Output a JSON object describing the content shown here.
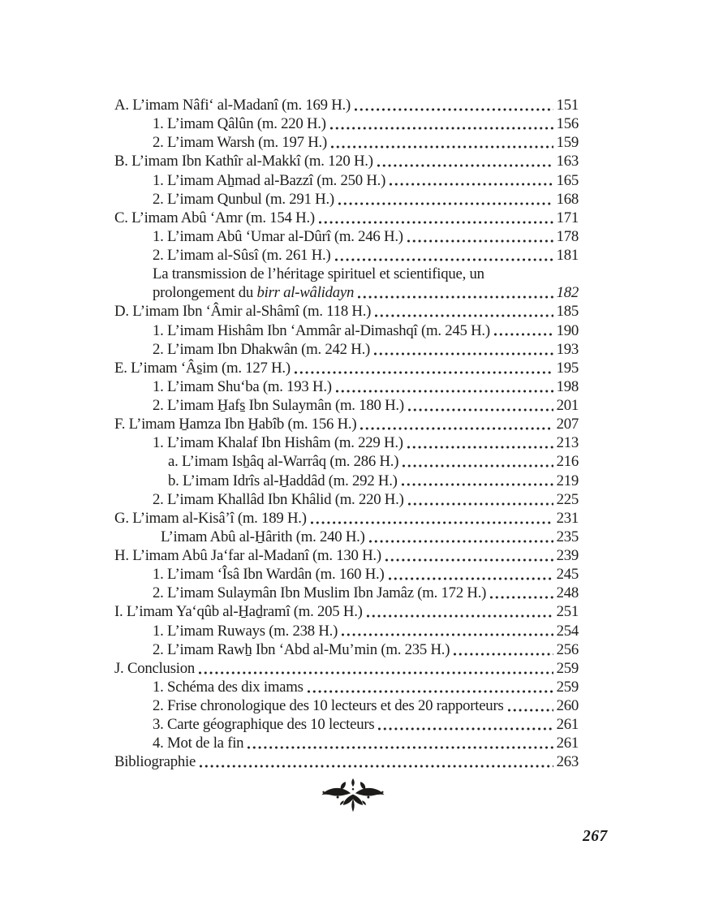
{
  "page": {
    "folio": "267",
    "text_color": "#1e1d1b",
    "background_color": "#ffffff"
  },
  "icons": {
    "ornament": "floral-fleuron"
  },
  "toc": {
    "entries": [
      {
        "level": "0",
        "text": "A. L’imam Nâfi‘ al-Madanî (m. 169 H.)",
        "page": "151"
      },
      {
        "level": "1",
        "text": "1. L’imam Qâlûn (m. 220 H.)",
        "page": "156"
      },
      {
        "level": "1",
        "text": "2. L’imam Warsh (m. 197 H.)",
        "page": "159"
      },
      {
        "level": "0",
        "text": "B. L’imam Ibn Kathîr al-Makkî (m. 120 H.)",
        "page": "163"
      },
      {
        "level": "1",
        "text": "1. L’imam Aẖmad al-Bazzî (m. 250 H.)",
        "page": "165"
      },
      {
        "level": "1",
        "text": "2. L’imam Qunbul (m. 291 H.)",
        "page": "168"
      },
      {
        "level": "0",
        "text": "C. L’imam Abû ‘Amr (m. 154 H.)",
        "page": "171"
      },
      {
        "level": "1",
        "text": "1. L’imam Abû ‘Umar al-Dûrî (m. 246 H.)",
        "page": "178"
      },
      {
        "level": "1",
        "text": "2. L’imam al-Sûsî (m. 261 H.)",
        "page": "181"
      },
      {
        "level": "1",
        "text": "La transmission de l’héritage spirituel et scientifique, un",
        "page": null
      },
      {
        "level": "1",
        "text": "prolongement du ",
        "text_italic": "birr al-wâlidayn",
        "page": "182",
        "page_italic": true
      },
      {
        "level": "0",
        "text": "D. L’imam Ibn ‘Âmir al-Shâmî (m. 118 H.)",
        "page": "185"
      },
      {
        "level": "1",
        "text": "1. L’imam Hishâm Ibn ‘Ammâr al-Dimashqî (m. 245 H.)",
        "page": "190"
      },
      {
        "level": "1",
        "text": "2. L’imam Ibn Dhakwân (m. 242 H.)",
        "page": "193"
      },
      {
        "level": "0",
        "text": "E. L’imam ‘Âs̱im (m. 127 H.)",
        "page": "195"
      },
      {
        "level": "1",
        "text": "1. L’imam Shu‘ba (m. 193 H.)",
        "page": "198"
      },
      {
        "level": "1",
        "text": "2. L’imam H̱afs̱ Ibn Sulaymân (m. 180 H.)",
        "page": "201"
      },
      {
        "level": "0",
        "text": "F. L’imam H̱amza Ibn H̱abîb (m. 156 H.)",
        "page": "207"
      },
      {
        "level": "1",
        "text": "1. L’imam Khalaf Ibn Hishâm (m. 229 H.)",
        "page": "213"
      },
      {
        "level": "2",
        "text": "a. L’imam Isẖâq al-Warrâq (m. 286 H.)",
        "page": "216"
      },
      {
        "level": "2",
        "text": "b. L’imam Idrîs al-H̱addâd (m. 292 H.)",
        "page": "219"
      },
      {
        "level": "1",
        "text": "2. L’imam Khallâd Ibn Khâlid (m. 220 H.)",
        "page": "225"
      },
      {
        "level": "0",
        "text": "G. L’imam al-Kisâ’î (m. 189 H.)",
        "page": "231"
      },
      {
        "level": "1b",
        "text": "L’imam Abû al-H̱ârith (m. 240 H.)",
        "page": "235"
      },
      {
        "level": "0",
        "text": "H. L’imam Abû Ja‘far al-Madanî (m. 130 H.)",
        "page": "239"
      },
      {
        "level": "1",
        "text": "1. L’imam ‘Îsâ Ibn Wardân (m. 160 H.)",
        "page": "245"
      },
      {
        "level": "1",
        "text": "2. L’imam Sulaymân Ibn Muslim Ibn Jamâz (m. 172 H.)",
        "page": "248"
      },
      {
        "level": "0",
        "text": "I. L’imam Ya‘qûb al-H̱aḏramî (m. 205 H.)",
        "page": "251"
      },
      {
        "level": "1",
        "text": "1. L’imam Ruways (m. 238 H.)",
        "page": "254"
      },
      {
        "level": "1",
        "text": "2. L’imam Rawẖ Ibn ‘Abd al-Mu’min (m. 235 H.)",
        "page": "256"
      },
      {
        "level": "0",
        "text": "J. Conclusion",
        "page": "259"
      },
      {
        "level": "1",
        "text": "1. Schéma des dix imams",
        "page": "259"
      },
      {
        "level": "1",
        "text": "2. Frise chronologique des 10 lecteurs et des 20 rapporteurs",
        "page": "260"
      },
      {
        "level": "1",
        "text": "3. Carte géographique des 10 lecteurs",
        "page": "261"
      },
      {
        "level": "1",
        "text": "4. Mot de la fin",
        "page": "261"
      },
      {
        "level": "0",
        "text": "Bibliographie",
        "page": "263"
      }
    ]
  }
}
